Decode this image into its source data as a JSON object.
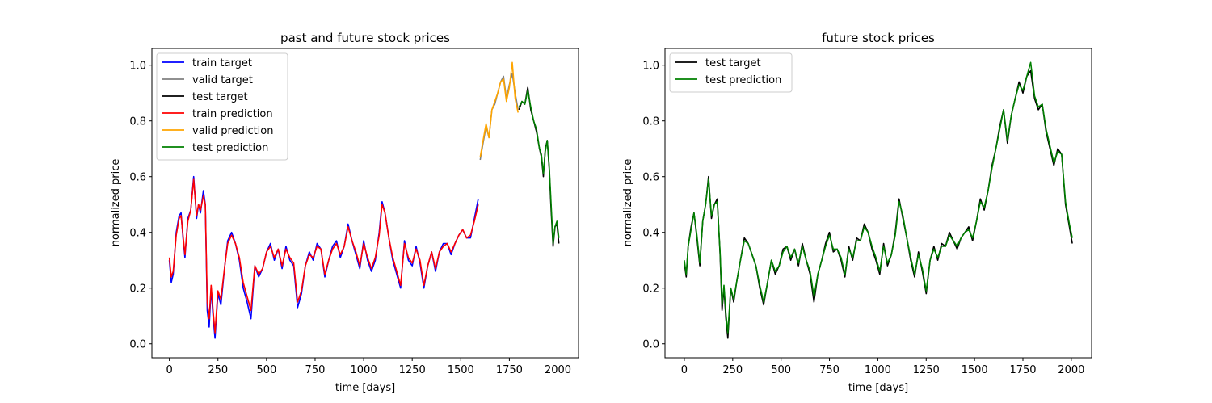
{
  "colors": {
    "train target": "#0000ff",
    "valid target": "#808080",
    "test target": "#000000",
    "train prediction": "#ff0000",
    "valid prediction": "#ffa500",
    "test prediction": "#008000"
  },
  "chart_data": [
    {
      "type": "line",
      "title": "past and future stock prices",
      "xlabel": "time [days]",
      "ylabel": "normalized price",
      "xlim": [
        -90,
        2106
      ],
      "ylim": [
        -0.05,
        1.06
      ],
      "xticks": [
        0,
        250,
        500,
        750,
        1000,
        1250,
        1500,
        1750,
        2000
      ],
      "yticks": [
        0.0,
        0.2,
        0.4,
        0.6,
        0.8,
        1.0
      ],
      "yticks_labels": [
        "0.0",
        "0.2",
        "0.4",
        "0.6",
        "0.8",
        "1.0"
      ],
      "grid": false,
      "legend": "upper-left",
      "legend_entries": [
        "train target",
        "valid target",
        "test target",
        "train prediction",
        "valid prediction",
        "test prediction"
      ],
      "series": [
        {
          "name": "train target",
          "x": [
            0,
            10,
            20,
            35,
            50,
            60,
            70,
            80,
            95,
            110,
            125,
            140,
            150,
            160,
            175,
            185,
            195,
            205,
            215,
            225,
            235,
            250,
            265,
            285,
            300,
            320,
            340,
            360,
            380,
            400,
            420,
            440,
            460,
            480,
            500,
            520,
            540,
            560,
            580,
            600,
            620,
            640,
            660,
            680,
            700,
            720,
            740,
            760,
            780,
            800,
            820,
            840,
            860,
            880,
            900,
            920,
            940,
            960,
            980,
            1000,
            1020,
            1040,
            1060,
            1080,
            1095,
            1110,
            1130,
            1150,
            1170,
            1190,
            1210,
            1230,
            1250,
            1270,
            1290,
            1310,
            1330,
            1350,
            1370,
            1390,
            1410,
            1430,
            1450,
            1470,
            1490,
            1510,
            1530,
            1550,
            1570,
            1590
          ],
          "y": [
            0.3,
            0.22,
            0.25,
            0.4,
            0.46,
            0.47,
            0.38,
            0.31,
            0.45,
            0.48,
            0.6,
            0.45,
            0.5,
            0.47,
            0.55,
            0.5,
            0.12,
            0.06,
            0.2,
            0.1,
            0.02,
            0.18,
            0.14,
            0.28,
            0.37,
            0.4,
            0.36,
            0.3,
            0.2,
            0.15,
            0.09,
            0.28,
            0.24,
            0.27,
            0.33,
            0.36,
            0.3,
            0.34,
            0.27,
            0.35,
            0.3,
            0.28,
            0.13,
            0.18,
            0.28,
            0.33,
            0.3,
            0.36,
            0.34,
            0.24,
            0.3,
            0.35,
            0.37,
            0.31,
            0.35,
            0.43,
            0.37,
            0.32,
            0.27,
            0.37,
            0.3,
            0.26,
            0.3,
            0.4,
            0.51,
            0.47,
            0.38,
            0.3,
            0.25,
            0.2,
            0.37,
            0.3,
            0.28,
            0.35,
            0.29,
            0.2,
            0.28,
            0.33,
            0.26,
            0.33,
            0.36,
            0.36,
            0.32,
            0.36,
            0.39,
            0.41,
            0.38,
            0.38,
            0.45,
            0.52
          ]
        },
        {
          "name": "train prediction",
          "x": [
            0,
            10,
            20,
            35,
            50,
            60,
            70,
            80,
            95,
            110,
            125,
            140,
            150,
            160,
            175,
            185,
            195,
            205,
            215,
            225,
            235,
            250,
            265,
            285,
            300,
            320,
            340,
            360,
            380,
            400,
            420,
            440,
            460,
            480,
            500,
            520,
            540,
            560,
            580,
            600,
            620,
            640,
            660,
            680,
            700,
            720,
            740,
            760,
            780,
            800,
            820,
            840,
            860,
            880,
            900,
            920,
            940,
            960,
            980,
            1000,
            1020,
            1040,
            1060,
            1080,
            1095,
            1110,
            1130,
            1150,
            1170,
            1190,
            1210,
            1230,
            1250,
            1270,
            1290,
            1310,
            1330,
            1350,
            1370,
            1390,
            1410,
            1430,
            1450,
            1470,
            1490,
            1510,
            1530,
            1550,
            1570,
            1590
          ],
          "y": [
            0.31,
            0.24,
            0.26,
            0.39,
            0.45,
            0.46,
            0.39,
            0.32,
            0.44,
            0.48,
            0.59,
            0.46,
            0.5,
            0.48,
            0.53,
            0.5,
            0.15,
            0.09,
            0.21,
            0.12,
            0.04,
            0.19,
            0.16,
            0.28,
            0.36,
            0.39,
            0.36,
            0.31,
            0.22,
            0.17,
            0.12,
            0.28,
            0.25,
            0.27,
            0.33,
            0.35,
            0.31,
            0.34,
            0.28,
            0.34,
            0.31,
            0.29,
            0.15,
            0.19,
            0.28,
            0.32,
            0.31,
            0.35,
            0.34,
            0.25,
            0.3,
            0.34,
            0.36,
            0.32,
            0.35,
            0.42,
            0.37,
            0.33,
            0.28,
            0.36,
            0.31,
            0.27,
            0.31,
            0.39,
            0.5,
            0.47,
            0.38,
            0.31,
            0.26,
            0.21,
            0.36,
            0.31,
            0.29,
            0.34,
            0.3,
            0.21,
            0.28,
            0.33,
            0.27,
            0.33,
            0.35,
            0.36,
            0.33,
            0.36,
            0.39,
            0.41,
            0.38,
            0.39,
            0.44,
            0.5
          ]
        },
        {
          "name": "valid target",
          "x": [
            1600,
            1615,
            1630,
            1645,
            1660,
            1675,
            1690,
            1705,
            1720,
            1735,
            1750,
            1765,
            1780,
            1795
          ],
          "y": [
            0.66,
            0.72,
            0.78,
            0.74,
            0.84,
            0.86,
            0.9,
            0.94,
            0.96,
            0.88,
            0.93,
            0.97,
            0.9,
            0.84
          ]
        },
        {
          "name": "valid prediction",
          "x": [
            1600,
            1615,
            1630,
            1645,
            1660,
            1675,
            1690,
            1705,
            1720,
            1735,
            1750,
            1765,
            1780,
            1795
          ],
          "y": [
            0.67,
            0.73,
            0.79,
            0.74,
            0.84,
            0.87,
            0.9,
            0.94,
            0.95,
            0.87,
            0.92,
            1.01,
            0.88,
            0.83
          ]
        },
        {
          "name": "test target",
          "x": [
            1800,
            1815,
            1830,
            1845,
            1860,
            1875,
            1890,
            1905,
            1915,
            1925,
            1935,
            1945,
            1955,
            1965,
            1975,
            1985,
            1995,
            2005
          ],
          "y": [
            0.84,
            0.87,
            0.86,
            0.92,
            0.84,
            0.8,
            0.76,
            0.7,
            0.67,
            0.6,
            0.7,
            0.73,
            0.63,
            0.48,
            0.35,
            0.42,
            0.43,
            0.36
          ]
        },
        {
          "name": "test prediction",
          "x": [
            1800,
            1815,
            1830,
            1845,
            1860,
            1875,
            1890,
            1905,
            1915,
            1925,
            1935,
            1945,
            1955,
            1965,
            1975,
            1985,
            1995,
            2005
          ],
          "y": [
            0.85,
            0.87,
            0.86,
            0.91,
            0.85,
            0.8,
            0.77,
            0.7,
            0.68,
            0.61,
            0.69,
            0.73,
            0.64,
            0.5,
            0.36,
            0.42,
            0.44,
            0.38
          ]
        }
      ]
    },
    {
      "type": "line",
      "title": "future stock prices",
      "xlabel": "time [days]",
      "ylabel": "normalized price",
      "xlim": [
        -100,
        2105
      ],
      "ylim": [
        -0.05,
        1.06
      ],
      "xticks": [
        0,
        250,
        500,
        750,
        1000,
        1250,
        1500,
        1750,
        2000
      ],
      "yticks": [
        0.0,
        0.2,
        0.4,
        0.6,
        0.8,
        1.0
      ],
      "yticks_labels": [
        "0.0",
        "0.2",
        "0.4",
        "0.6",
        "0.8",
        "1.0"
      ],
      "grid": false,
      "legend": "upper-left",
      "legend_entries": [
        "test target",
        "test prediction"
      ],
      "series": [
        {
          "name": "test target",
          "x": [
            0,
            10,
            20,
            35,
            50,
            65,
            80,
            95,
            110,
            125,
            140,
            155,
            170,
            185,
            195,
            205,
            215,
            225,
            240,
            255,
            270,
            290,
            310,
            330,
            350,
            370,
            390,
            410,
            430,
            450,
            470,
            490,
            510,
            530,
            550,
            570,
            590,
            610,
            630,
            650,
            670,
            690,
            710,
            730,
            750,
            770,
            790,
            810,
            830,
            850,
            870,
            890,
            910,
            930,
            950,
            970,
            990,
            1010,
            1030,
            1050,
            1070,
            1090,
            1110,
            1130,
            1150,
            1170,
            1190,
            1210,
            1230,
            1250,
            1270,
            1290,
            1310,
            1330,
            1350,
            1370,
            1390,
            1410,
            1430,
            1450,
            1470,
            1490,
            1510,
            1530,
            1550,
            1570,
            1590,
            1610,
            1630,
            1650,
            1670,
            1690,
            1710,
            1730,
            1750,
            1770,
            1790,
            1810,
            1830,
            1850,
            1870,
            1890,
            1910,
            1930,
            1950,
            1970,
            1990,
            2005
          ],
          "y": [
            0.29,
            0.24,
            0.35,
            0.42,
            0.47,
            0.38,
            0.28,
            0.44,
            0.5,
            0.6,
            0.45,
            0.5,
            0.52,
            0.32,
            0.12,
            0.2,
            0.09,
            0.02,
            0.2,
            0.15,
            0.22,
            0.3,
            0.38,
            0.36,
            0.32,
            0.28,
            0.2,
            0.14,
            0.22,
            0.3,
            0.25,
            0.28,
            0.34,
            0.35,
            0.3,
            0.34,
            0.28,
            0.36,
            0.3,
            0.25,
            0.15,
            0.25,
            0.3,
            0.36,
            0.4,
            0.33,
            0.34,
            0.3,
            0.24,
            0.35,
            0.3,
            0.38,
            0.37,
            0.43,
            0.4,
            0.34,
            0.3,
            0.25,
            0.36,
            0.28,
            0.32,
            0.4,
            0.52,
            0.45,
            0.38,
            0.3,
            0.24,
            0.33,
            0.26,
            0.18,
            0.3,
            0.35,
            0.3,
            0.36,
            0.35,
            0.4,
            0.37,
            0.34,
            0.38,
            0.4,
            0.42,
            0.37,
            0.44,
            0.52,
            0.48,
            0.55,
            0.64,
            0.7,
            0.78,
            0.84,
            0.72,
            0.82,
            0.88,
            0.94,
            0.9,
            0.96,
            0.98,
            0.88,
            0.84,
            0.86,
            0.76,
            0.7,
            0.64,
            0.7,
            0.68,
            0.5,
            0.42,
            0.36
          ]
        },
        {
          "name": "test prediction",
          "x": [
            0,
            10,
            20,
            35,
            50,
            65,
            80,
            95,
            110,
            125,
            140,
            155,
            170,
            185,
            195,
            205,
            215,
            225,
            240,
            255,
            270,
            290,
            310,
            330,
            350,
            370,
            390,
            410,
            430,
            450,
            470,
            490,
            510,
            530,
            550,
            570,
            590,
            610,
            630,
            650,
            670,
            690,
            710,
            730,
            750,
            770,
            790,
            810,
            830,
            850,
            870,
            890,
            910,
            930,
            950,
            970,
            990,
            1010,
            1030,
            1050,
            1070,
            1090,
            1110,
            1130,
            1150,
            1170,
            1190,
            1210,
            1230,
            1250,
            1270,
            1290,
            1310,
            1330,
            1350,
            1370,
            1390,
            1410,
            1430,
            1450,
            1470,
            1490,
            1510,
            1530,
            1550,
            1570,
            1590,
            1610,
            1630,
            1650,
            1670,
            1690,
            1710,
            1730,
            1750,
            1770,
            1790,
            1810,
            1830,
            1850,
            1870,
            1890,
            1910,
            1930,
            1950,
            1970,
            1990,
            2005
          ],
          "y": [
            0.3,
            0.25,
            0.35,
            0.41,
            0.47,
            0.39,
            0.29,
            0.44,
            0.5,
            0.59,
            0.46,
            0.5,
            0.51,
            0.33,
            0.14,
            0.21,
            0.11,
            0.04,
            0.2,
            0.16,
            0.22,
            0.3,
            0.37,
            0.36,
            0.32,
            0.28,
            0.21,
            0.15,
            0.22,
            0.3,
            0.26,
            0.28,
            0.33,
            0.35,
            0.31,
            0.34,
            0.29,
            0.35,
            0.3,
            0.26,
            0.17,
            0.25,
            0.3,
            0.35,
            0.39,
            0.34,
            0.34,
            0.31,
            0.25,
            0.34,
            0.31,
            0.37,
            0.37,
            0.42,
            0.4,
            0.35,
            0.31,
            0.26,
            0.35,
            0.29,
            0.32,
            0.39,
            0.51,
            0.46,
            0.38,
            0.31,
            0.25,
            0.32,
            0.27,
            0.19,
            0.3,
            0.34,
            0.31,
            0.35,
            0.35,
            0.39,
            0.37,
            0.35,
            0.38,
            0.4,
            0.41,
            0.38,
            0.44,
            0.51,
            0.49,
            0.55,
            0.63,
            0.7,
            0.77,
            0.84,
            0.73,
            0.82,
            0.88,
            0.93,
            0.91,
            0.96,
            1.01,
            0.89,
            0.85,
            0.86,
            0.77,
            0.71,
            0.65,
            0.69,
            0.68,
            0.51,
            0.43,
            0.38
          ]
        }
      ]
    }
  ]
}
